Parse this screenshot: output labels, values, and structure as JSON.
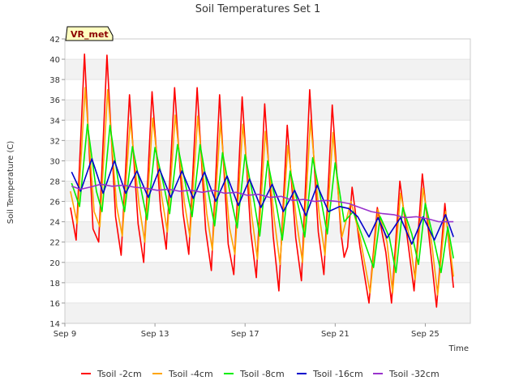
{
  "chart_data": {
    "type": "line",
    "title": "Soil Temperatures Set 1",
    "xlabel": "Time",
    "ylabel": "Soil Temperature (C)",
    "badge": "VR_met",
    "ylim": [
      14,
      42
    ],
    "xlim": [
      "Sep 9",
      "Sep 27"
    ],
    "y_ticks": [
      14,
      16,
      18,
      20,
      22,
      24,
      26,
      28,
      30,
      32,
      34,
      36,
      38,
      40,
      42
    ],
    "x_ticks": [
      {
        "label": "Sep 9",
        "day": 9
      },
      {
        "label": "Sep 13",
        "day": 13
      },
      {
        "label": "Sep 17",
        "day": 17
      },
      {
        "label": "Sep 21",
        "day": 21
      },
      {
        "label": "Sep 25",
        "day": 25
      }
    ],
    "grid": "horizontal bands",
    "legend": "bottom",
    "series": [
      {
        "name": "Tsoil -2cm",
        "color": "#ff0000",
        "x": [
          9.25,
          9.5,
          9.87,
          10.25,
          10.5,
          10.87,
          11.25,
          11.5,
          11.87,
          12.25,
          12.5,
          12.87,
          13.25,
          13.5,
          13.87,
          14.25,
          14.5,
          14.87,
          15.25,
          15.5,
          15.87,
          16.25,
          16.5,
          16.87,
          17.25,
          17.5,
          17.87,
          18.25,
          18.5,
          18.87,
          19.25,
          19.5,
          19.87,
          20.25,
          20.5,
          20.87,
          21.25,
          21.4,
          21.55,
          21.75,
          22.1,
          22.5,
          22.87,
          23.25,
          23.5,
          23.87,
          24.25,
          24.5,
          24.87,
          25.25,
          25.5,
          25.87,
          26.25
        ],
        "y": [
          25.4,
          22.2,
          40.5,
          23.3,
          22.0,
          40.4,
          24.5,
          20.7,
          36.5,
          23.8,
          20.0,
          36.8,
          25.2,
          21.3,
          37.2,
          24.8,
          20.8,
          37.2,
          23.2,
          19.2,
          36.5,
          21.8,
          18.8,
          36.3,
          23.0,
          18.5,
          35.6,
          22.6,
          17.2,
          33.5,
          22.4,
          18.2,
          37.0,
          23.0,
          18.8,
          35.5,
          23.0,
          20.5,
          21.5,
          27.4,
          21.5,
          16.0,
          25.4,
          21.0,
          16.0,
          28.0,
          21.6,
          17.2,
          28.7,
          20.8,
          15.6,
          25.8,
          17.5
        ]
      },
      {
        "name": "Tsoil -4cm",
        "color": "#ffa500",
        "x": [
          9.25,
          9.55,
          9.9,
          10.3,
          10.55,
          10.9,
          11.3,
          11.55,
          11.9,
          12.3,
          12.55,
          12.9,
          13.3,
          13.55,
          13.9,
          14.3,
          14.55,
          14.9,
          15.3,
          15.55,
          15.9,
          16.3,
          16.55,
          16.9,
          17.3,
          17.55,
          17.9,
          18.3,
          18.55,
          18.9,
          19.3,
          19.55,
          19.9,
          20.3,
          20.55,
          20.9,
          21.3,
          21.7,
          22.1,
          22.55,
          22.9,
          23.3,
          23.55,
          23.9,
          24.3,
          24.55,
          24.9,
          25.3,
          25.55,
          25.9,
          26.25
        ],
        "y": [
          27.0,
          23.8,
          37.2,
          25.0,
          23.5,
          37.0,
          25.5,
          22.6,
          34.0,
          25.5,
          22.0,
          34.2,
          26.5,
          23.0,
          34.5,
          26.0,
          22.5,
          34.4,
          24.8,
          21.2,
          33.8,
          23.5,
          20.8,
          33.6,
          24.5,
          20.3,
          32.9,
          24.2,
          19.8,
          31.5,
          23.8,
          20.0,
          34.0,
          24.5,
          20.7,
          32.8,
          22.5,
          26.0,
          22.5,
          17.0,
          25.2,
          22.0,
          17.0,
          26.8,
          22.4,
          18.3,
          27.3,
          21.6,
          16.8,
          25.0,
          18.6
        ]
      },
      {
        "name": "Tsoil -8cm",
        "color": "#00ee00",
        "x": [
          9.3,
          9.65,
          10.0,
          10.4,
          10.65,
          11.0,
          11.4,
          11.65,
          12.0,
          12.4,
          12.65,
          13.0,
          13.4,
          13.65,
          14.0,
          14.4,
          14.65,
          15.0,
          15.4,
          15.65,
          16.0,
          16.4,
          16.65,
          17.0,
          17.4,
          17.65,
          18.0,
          18.4,
          18.65,
          19.0,
          19.4,
          19.65,
          20.0,
          20.4,
          20.65,
          21.0,
          21.4,
          21.8,
          22.25,
          22.7,
          23.0,
          23.4,
          23.7,
          24.0,
          24.4,
          24.7,
          25.0,
          25.4,
          25.7,
          26.0,
          26.25
        ],
        "y": [
          27.8,
          25.5,
          33.6,
          27.0,
          25.0,
          33.5,
          27.5,
          25.0,
          31.4,
          27.0,
          24.2,
          31.3,
          27.5,
          24.8,
          31.6,
          27.2,
          24.5,
          31.6,
          26.5,
          23.6,
          30.8,
          26.0,
          23.4,
          30.6,
          26.0,
          22.6,
          30.0,
          25.5,
          22.2,
          29.0,
          25.2,
          22.5,
          30.3,
          25.8,
          22.8,
          29.8,
          24.0,
          25.0,
          22.3,
          19.5,
          24.5,
          22.5,
          19.0,
          25.4,
          22.8,
          19.8,
          25.8,
          22.0,
          19.0,
          23.5,
          20.4
        ]
      },
      {
        "name": "Tsoil -16cm",
        "color": "#0000cc",
        "x": [
          9.3,
          9.7,
          10.2,
          10.7,
          11.2,
          11.7,
          12.2,
          12.7,
          13.2,
          13.7,
          14.2,
          14.7,
          15.2,
          15.7,
          16.2,
          16.7,
          17.2,
          17.7,
          18.2,
          18.7,
          19.2,
          19.7,
          20.2,
          20.7,
          21.2,
          21.6,
          22.0,
          22.5,
          22.9,
          23.3,
          23.9,
          24.4,
          24.9,
          25.4,
          25.9,
          26.25
        ],
        "y": [
          28.9,
          27.0,
          30.2,
          26.8,
          30.0,
          26.8,
          29.0,
          26.4,
          29.2,
          26.4,
          29.0,
          26.3,
          28.9,
          26.0,
          28.5,
          25.6,
          28.2,
          25.4,
          27.7,
          25.0,
          27.1,
          24.6,
          27.6,
          25.0,
          25.5,
          25.3,
          24.5,
          22.5,
          24.4,
          22.4,
          24.4,
          21.8,
          24.5,
          22.2,
          24.7,
          22.5
        ]
      },
      {
        "name": "Tsoil -32cm",
        "color": "#9933cc",
        "x": [
          9.3,
          9.7,
          10.1,
          10.6,
          11.1,
          11.6,
          12.1,
          12.6,
          13.1,
          13.6,
          14.1,
          14.6,
          15.1,
          15.6,
          16.1,
          16.6,
          17.1,
          17.6,
          18.1,
          18.6,
          19.1,
          19.6,
          20.1,
          20.6,
          21.1,
          21.6,
          22.1,
          22.6,
          23.1,
          23.6,
          24.1,
          24.6,
          25.1,
          25.6,
          26.25
        ],
        "y": [
          27.5,
          27.2,
          27.4,
          27.7,
          27.5,
          27.6,
          27.4,
          27.3,
          27.1,
          27.2,
          27.0,
          27.1,
          26.9,
          27.1,
          26.8,
          26.9,
          26.6,
          26.7,
          26.4,
          26.5,
          26.1,
          26.2,
          26.0,
          26.1,
          26.0,
          25.8,
          25.4,
          25.0,
          24.8,
          24.7,
          24.4,
          24.5,
          24.3,
          24.0,
          24.0
        ]
      }
    ]
  }
}
